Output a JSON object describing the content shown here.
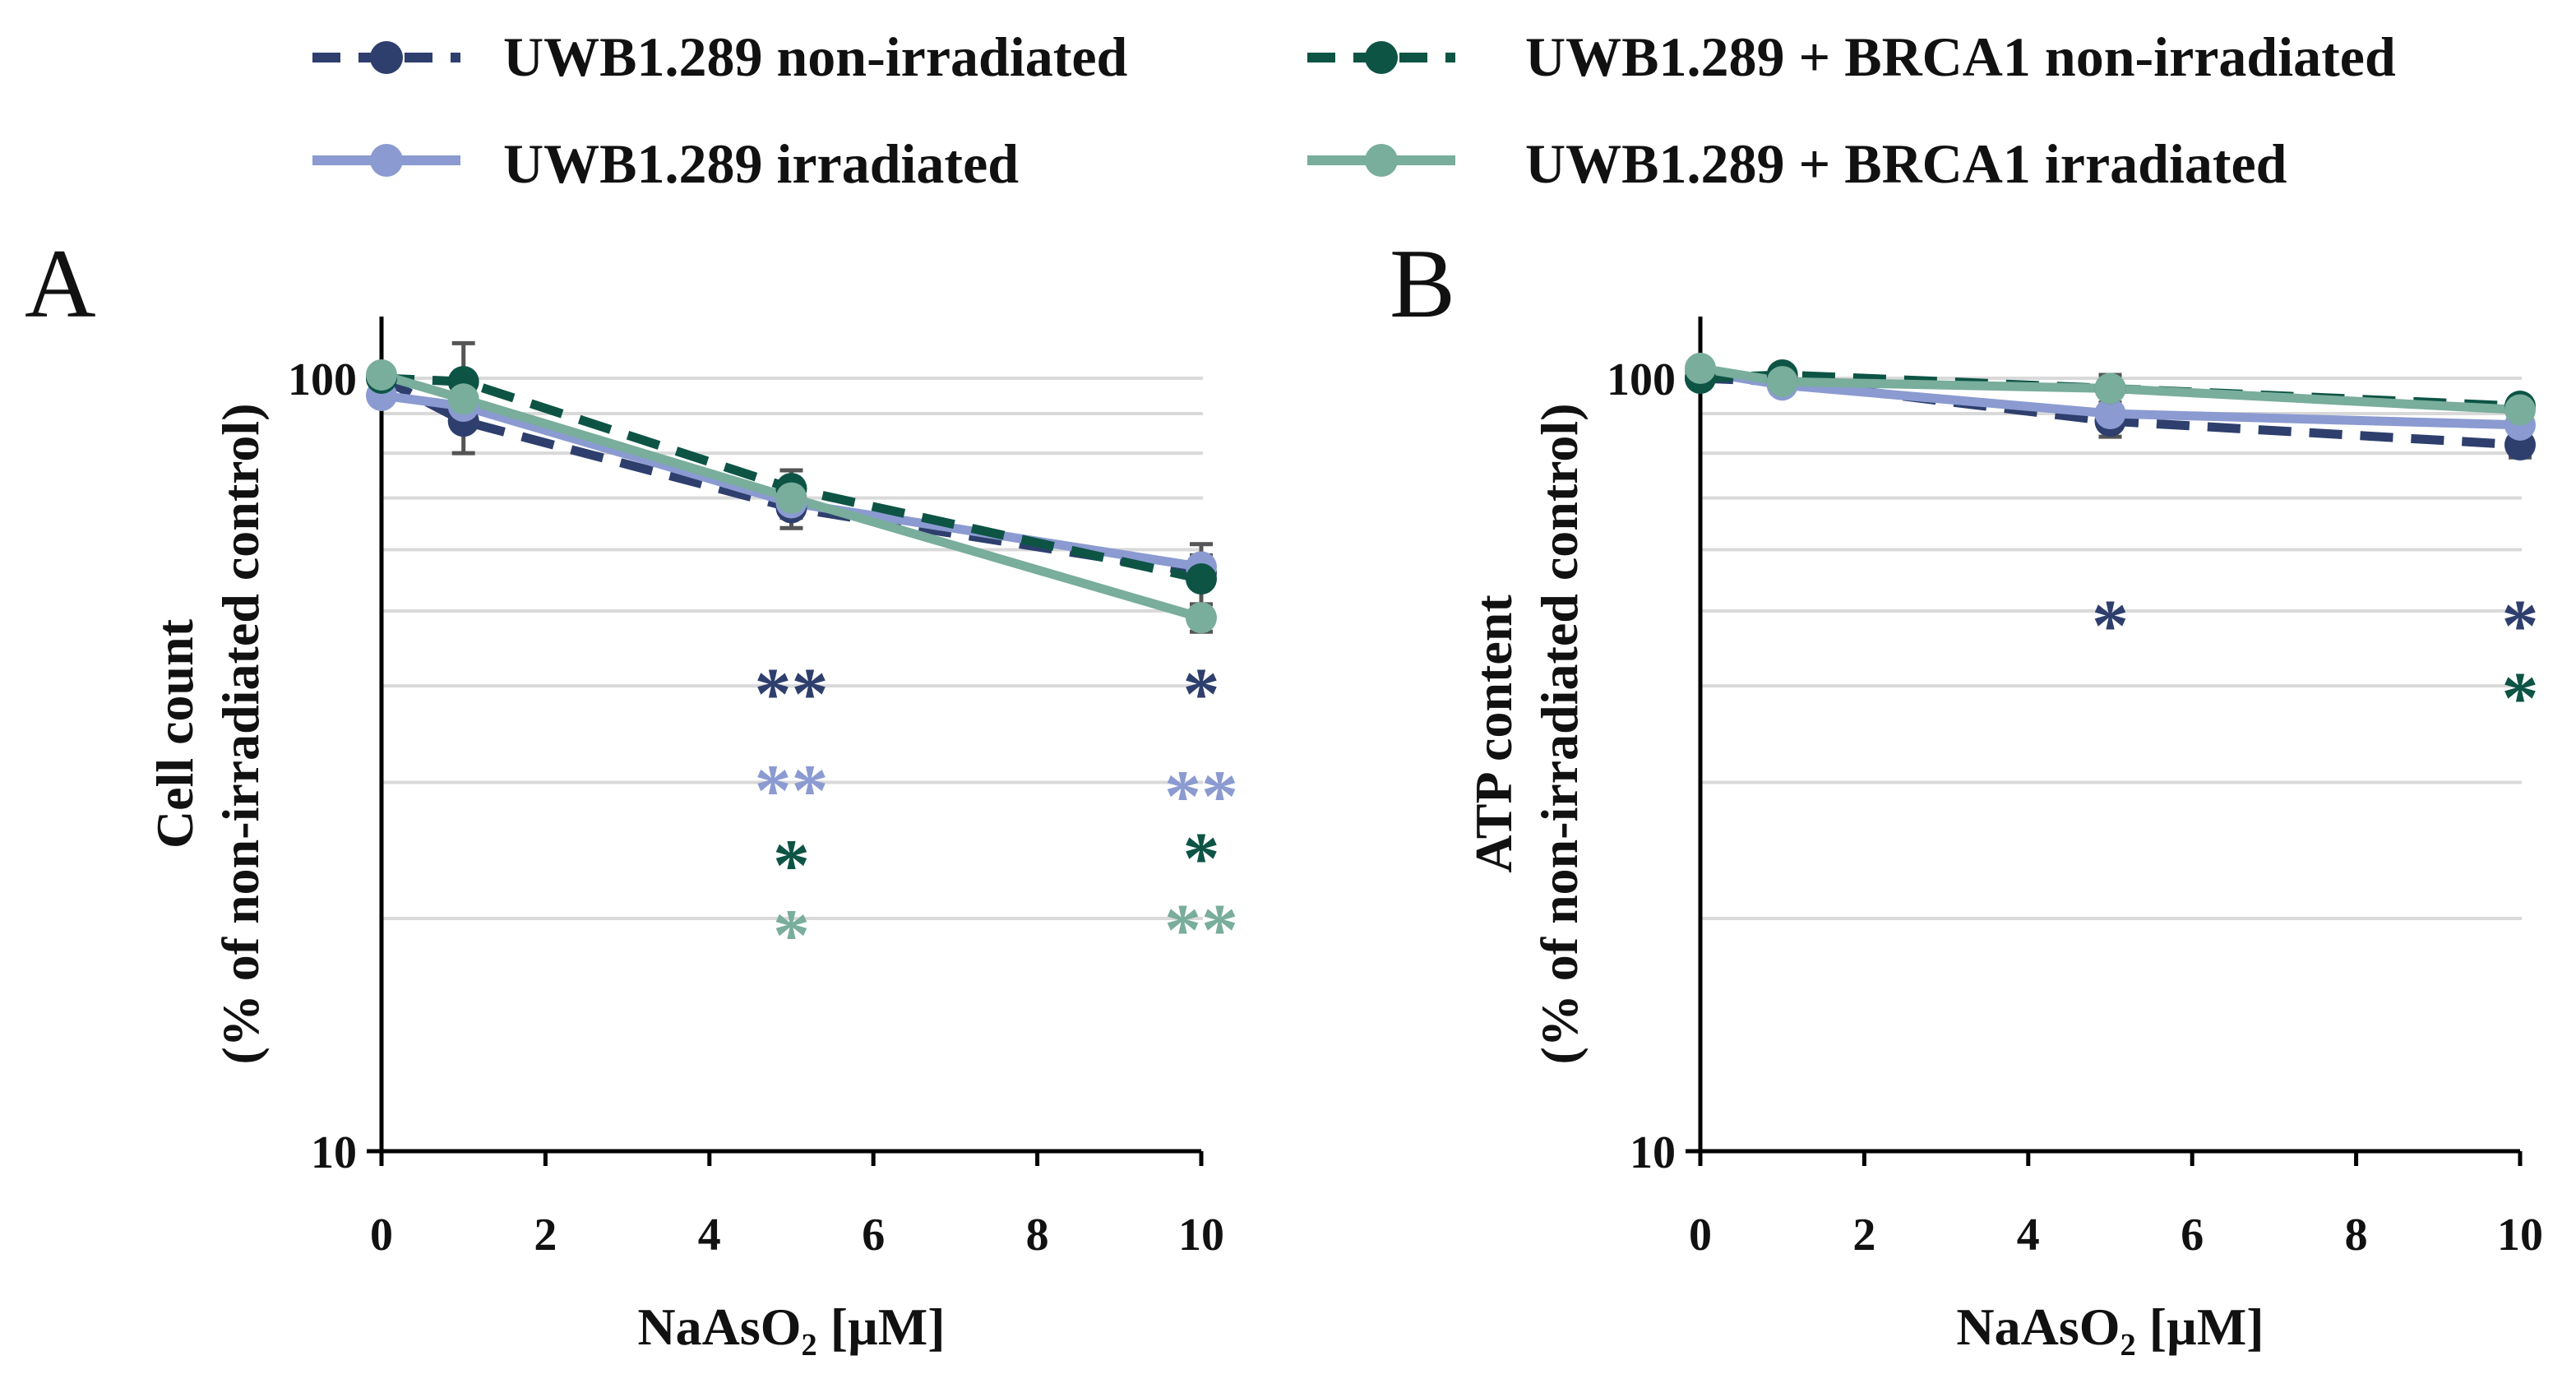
{
  "colors": {
    "dark_blue": "#2E3F6E",
    "light_blue": "#8B9BD1",
    "dark_green": "#0D5445",
    "light_green": "#79AD9C",
    "gridline": "#D9D9D9",
    "axis": "#000000",
    "errorbar": "#555555"
  },
  "legend": [
    {
      "label": "UWB1.289 non-irradiated",
      "color": "#2E3F6E",
      "dashed": true
    },
    {
      "label": "UWB1.289 + BRCA1 non-irradiated",
      "color": "#0D5445",
      "dashed": true
    },
    {
      "label": "UWB1.289 irradiated",
      "color": "#8B9BD1",
      "dashed": false
    },
    {
      "label": "UWB1.289 + BRCA1 irradiated",
      "color": "#79AD9C",
      "dashed": false
    }
  ],
  "chart_data": [
    {
      "type": "line",
      "panel": "A",
      "xlabel": "NaAsO₂ [µM]",
      "ylabel_line1": "Cell count",
      "ylabel_line2": "(% of non-irradiated control)",
      "xlim": [
        0,
        10
      ],
      "xticks": [
        "0",
        "2",
        "4",
        "6",
        "8",
        "10"
      ],
      "ylim": [
        10,
        115
      ],
      "yscale": "log",
      "yticks": [
        "10",
        "100"
      ],
      "grid": true,
      "x": [
        0,
        1,
        5,
        10
      ],
      "series": [
        {
          "name": "UWB1.289 non-irradiated",
          "color": "#2E3F6E",
          "dashed": true,
          "values": [
            100,
            88,
            68,
            56
          ],
          "errors": [
            1,
            8,
            4,
            2
          ]
        },
        {
          "name": "UWB1.289 irradiated",
          "color": "#8B9BD1",
          "dashed": false,
          "values": [
            95,
            92,
            69,
            57
          ],
          "errors": [
            1,
            2,
            3,
            2
          ]
        },
        {
          "name": "UWB1.289 + BRCA1 non-irradiated",
          "color": "#0D5445",
          "dashed": true,
          "values": [
            100,
            99,
            72,
            55
          ],
          "errors": [
            1,
            12,
            4,
            6
          ]
        },
        {
          "name": "UWB1.289 + BRCA1 irradiated",
          "color": "#79AD9C",
          "dashed": false,
          "values": [
            101,
            94,
            70,
            49
          ],
          "errors": [
            1,
            2,
            3,
            2
          ]
        }
      ],
      "annotations": [
        {
          "text": "**",
          "x": 5,
          "y": 40,
          "color": "#2E3F6E"
        },
        {
          "text": "*",
          "x": 10,
          "y": 40,
          "color": "#2E3F6E"
        },
        {
          "text": "**",
          "x": 5,
          "y": 30,
          "color": "#8B9BD1"
        },
        {
          "text": "**",
          "x": 10,
          "y": 29.5,
          "color": "#8B9BD1"
        },
        {
          "text": "*",
          "x": 5,
          "y": 24,
          "color": "#0D5445"
        },
        {
          "text": "*",
          "x": 10,
          "y": 24.5,
          "color": "#0D5445"
        },
        {
          "text": "*",
          "x": 5,
          "y": 19.5,
          "color": "#79AD9C"
        },
        {
          "text": "**",
          "x": 10,
          "y": 19.8,
          "color": "#79AD9C"
        }
      ]
    },
    {
      "type": "line",
      "panel": "B",
      "xlabel": "NaAsO₂ [µM]",
      "ylabel_line1": "ATP content",
      "ylabel_line2": "(% of non-irradiated control)",
      "xlim": [
        0,
        10
      ],
      "xticks": [
        "0",
        "2",
        "4",
        "6",
        "8",
        "10"
      ],
      "ylim": [
        10,
        115
      ],
      "yscale": "log",
      "yticks": [
        "10",
        "100"
      ],
      "grid": true,
      "x": [
        0,
        1,
        5,
        10
      ],
      "series": [
        {
          "name": "UWB1.289 non-irradiated",
          "color": "#2E3F6E",
          "dashed": true,
          "values": [
            100,
            99,
            88,
            82
          ],
          "errors": [
            1,
            3,
            4,
            3
          ]
        },
        {
          "name": "UWB1.289 irradiated",
          "color": "#8B9BD1",
          "dashed": false,
          "values": [
            102,
            98,
            90,
            87
          ],
          "errors": [
            1,
            2,
            2,
            2
          ]
        },
        {
          "name": "UWB1.289 + BRCA1 non-irradiated",
          "color": "#0D5445",
          "dashed": true,
          "values": [
            100,
            101,
            97,
            92
          ],
          "errors": [
            1,
            2,
            2,
            2
          ]
        },
        {
          "name": "UWB1.289 + BRCA1 irradiated",
          "color": "#79AD9C",
          "dashed": false,
          "values": [
            103,
            99,
            97,
            91
          ],
          "errors": [
            1,
            2,
            4,
            2
          ]
        }
      ],
      "annotations": [
        {
          "text": "*",
          "x": 5,
          "y": 49,
          "color": "#2E3F6E"
        },
        {
          "text": "*",
          "x": 10,
          "y": 49,
          "color": "#2E3F6E"
        },
        {
          "text": "*",
          "x": 10,
          "y": 39.5,
          "color": "#0D5445"
        }
      ]
    }
  ]
}
